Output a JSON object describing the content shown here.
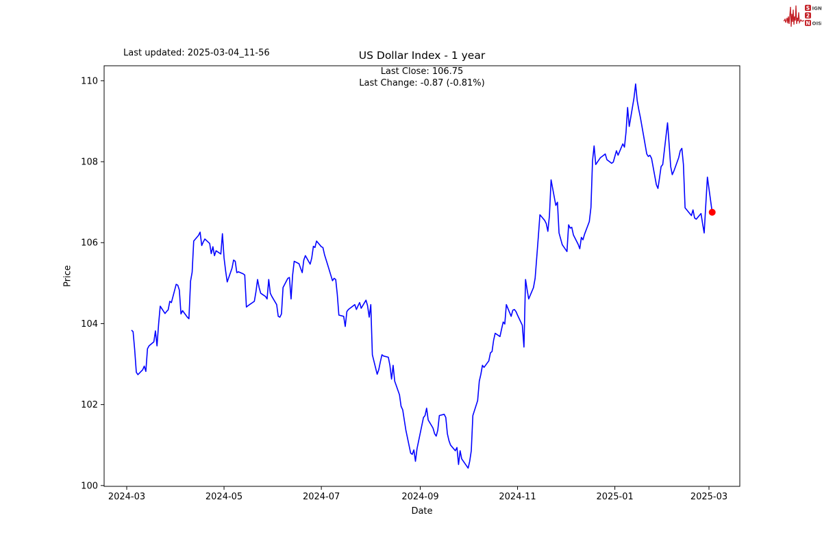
{
  "figure": {
    "updated_label": "Last updated: 2025-03-04_11-56",
    "title": "US Dollar Index - 1 year",
    "subtitle_line1": "Last Close: 106.75",
    "subtitle_line2": "Last Change: -0.87 (-0.81%)"
  },
  "logo": {
    "row1_badge": "S",
    "row1_rest": "IGNAL",
    "row2_badge": "2",
    "row3_badge": "N",
    "row3_rest": "OISE",
    "accent_color": "#c42127",
    "text_color": "#4a4a4a"
  },
  "chart_data": {
    "type": "line",
    "title": "US Dollar Index - 1 year",
    "xlabel": "Date",
    "ylabel": "Price",
    "legend": "none",
    "grid": false,
    "ylim": [
      99.98,
      110.37
    ],
    "xlim": [
      "2024-02-16",
      "2025-03-20"
    ],
    "y_ticks": [
      100,
      102,
      104,
      106,
      108,
      110
    ],
    "x_ticks": [
      {
        "label": "2024-03",
        "date": "2024-03-01"
      },
      {
        "label": "2024-05",
        "date": "2024-05-01"
      },
      {
        "label": "2024-07",
        "date": "2024-07-01"
      },
      {
        "label": "2024-09",
        "date": "2024-09-01"
      },
      {
        "label": "2024-11",
        "date": "2024-11-01"
      },
      {
        "label": "2025-01",
        "date": "2025-01-01"
      },
      {
        "label": "2025-03",
        "date": "2025-03-01"
      }
    ],
    "line_color": "#0000ff",
    "marker_color": "#ff0000",
    "last_point": {
      "date": "2025-03-03",
      "price": 106.75
    },
    "last_close": 106.75,
    "last_change": -0.87,
    "last_change_pct": -0.81,
    "series": [
      {
        "name": "US Dollar Index",
        "points": [
          [
            "2024-03-04",
            103.84
          ],
          [
            "2024-03-05",
            103.8
          ],
          [
            "2024-03-06",
            103.36
          ],
          [
            "2024-03-07",
            102.8
          ],
          [
            "2024-03-08",
            102.74
          ],
          [
            "2024-03-11",
            102.86
          ],
          [
            "2024-03-12",
            102.95
          ],
          [
            "2024-03-13",
            102.82
          ],
          [
            "2024-03-14",
            103.38
          ],
          [
            "2024-03-15",
            103.45
          ],
          [
            "2024-03-18",
            103.55
          ],
          [
            "2024-03-19",
            103.82
          ],
          [
            "2024-03-20",
            103.45
          ],
          [
            "2024-03-21",
            104.0
          ],
          [
            "2024-03-22",
            104.43
          ],
          [
            "2024-03-25",
            104.25
          ],
          [
            "2024-03-26",
            104.3
          ],
          [
            "2024-03-27",
            104.34
          ],
          [
            "2024-03-28",
            104.55
          ],
          [
            "2024-03-29",
            104.52
          ],
          [
            "2024-04-01",
            104.97
          ],
          [
            "2024-04-02",
            104.95
          ],
          [
            "2024-04-03",
            104.83
          ],
          [
            "2024-04-04",
            104.24
          ],
          [
            "2024-04-05",
            104.32
          ],
          [
            "2024-04-08",
            104.16
          ],
          [
            "2024-04-09",
            104.12
          ],
          [
            "2024-04-10",
            105.05
          ],
          [
            "2024-04-11",
            105.27
          ],
          [
            "2024-04-12",
            106.04
          ],
          [
            "2024-04-15",
            106.18
          ],
          [
            "2024-04-16",
            106.26
          ],
          [
            "2024-04-17",
            105.93
          ],
          [
            "2024-04-18",
            106.02
          ],
          [
            "2024-04-19",
            106.09
          ],
          [
            "2024-04-22",
            105.98
          ],
          [
            "2024-04-23",
            105.73
          ],
          [
            "2024-04-24",
            105.9
          ],
          [
            "2024-04-25",
            105.68
          ],
          [
            "2024-04-26",
            105.8
          ],
          [
            "2024-04-29",
            105.72
          ],
          [
            "2024-04-30",
            106.22
          ],
          [
            "2024-05-01",
            105.62
          ],
          [
            "2024-05-02",
            105.3
          ],
          [
            "2024-05-03",
            105.03
          ],
          [
            "2024-05-06",
            105.37
          ],
          [
            "2024-05-07",
            105.57
          ],
          [
            "2024-05-08",
            105.54
          ],
          [
            "2024-05-09",
            105.26
          ],
          [
            "2024-05-10",
            105.28
          ],
          [
            "2024-05-13",
            105.23
          ],
          [
            "2024-05-14",
            105.2
          ],
          [
            "2024-05-15",
            104.41
          ],
          [
            "2024-05-16",
            104.44
          ],
          [
            "2024-05-17",
            104.47
          ],
          [
            "2024-05-20",
            104.55
          ],
          [
            "2024-05-21",
            104.78
          ],
          [
            "2024-05-22",
            105.09
          ],
          [
            "2024-05-23",
            104.89
          ],
          [
            "2024-05-24",
            104.75
          ],
          [
            "2024-05-27",
            104.67
          ],
          [
            "2024-05-28",
            104.61
          ],
          [
            "2024-05-29",
            105.09
          ],
          [
            "2024-05-30",
            104.75
          ],
          [
            "2024-05-31",
            104.67
          ],
          [
            "2024-06-03",
            104.47
          ],
          [
            "2024-06-04",
            104.18
          ],
          [
            "2024-06-05",
            104.16
          ],
          [
            "2024-06-06",
            104.24
          ],
          [
            "2024-06-07",
            104.89
          ],
          [
            "2024-06-10",
            105.12
          ],
          [
            "2024-06-11",
            105.14
          ],
          [
            "2024-06-12",
            104.61
          ],
          [
            "2024-06-13",
            105.2
          ],
          [
            "2024-06-14",
            105.54
          ],
          [
            "2024-06-17",
            105.48
          ],
          [
            "2024-06-18",
            105.37
          ],
          [
            "2024-06-19",
            105.26
          ],
          [
            "2024-06-20",
            105.57
          ],
          [
            "2024-06-21",
            105.68
          ],
          [
            "2024-06-24",
            105.47
          ],
          [
            "2024-06-25",
            105.62
          ],
          [
            "2024-06-26",
            105.91
          ],
          [
            "2024-06-27",
            105.88
          ],
          [
            "2024-06-28",
            106.04
          ],
          [
            "2024-07-01",
            105.9
          ],
          [
            "2024-07-02",
            105.88
          ],
          [
            "2024-07-03",
            105.7
          ],
          [
            "2024-07-05",
            105.45
          ],
          [
            "2024-07-08",
            105.06
          ],
          [
            "2024-07-09",
            105.12
          ],
          [
            "2024-07-10",
            105.09
          ],
          [
            "2024-07-11",
            104.72
          ],
          [
            "2024-07-12",
            104.21
          ],
          [
            "2024-07-15",
            104.18
          ],
          [
            "2024-07-16",
            103.93
          ],
          [
            "2024-07-17",
            104.3
          ],
          [
            "2024-07-18",
            104.35
          ],
          [
            "2024-07-19",
            104.38
          ],
          [
            "2024-07-22",
            104.47
          ],
          [
            "2024-07-23",
            104.35
          ],
          [
            "2024-07-24",
            104.44
          ],
          [
            "2024-07-25",
            104.52
          ],
          [
            "2024-07-26",
            104.38
          ],
          [
            "2024-07-29",
            104.58
          ],
          [
            "2024-07-30",
            104.44
          ],
          [
            "2024-07-31",
            104.16
          ],
          [
            "2024-08-01",
            104.47
          ],
          [
            "2024-08-02",
            103.23
          ],
          [
            "2024-08-05",
            102.75
          ],
          [
            "2024-08-06",
            102.86
          ],
          [
            "2024-08-07",
            103.06
          ],
          [
            "2024-08-08",
            103.23
          ],
          [
            "2024-08-09",
            103.2
          ],
          [
            "2024-08-12",
            103.17
          ],
          [
            "2024-08-13",
            102.97
          ],
          [
            "2024-08-14",
            102.63
          ],
          [
            "2024-08-15",
            102.97
          ],
          [
            "2024-08-16",
            102.58
          ],
          [
            "2024-08-19",
            102.24
          ],
          [
            "2024-08-20",
            101.96
          ],
          [
            "2024-08-21",
            101.87
          ],
          [
            "2024-08-22",
            101.62
          ],
          [
            "2024-08-23",
            101.37
          ],
          [
            "2024-08-26",
            100.8
          ],
          [
            "2024-08-27",
            100.77
          ],
          [
            "2024-08-28",
            100.88
          ],
          [
            "2024-08-29",
            100.6
          ],
          [
            "2024-08-30",
            100.91
          ],
          [
            "2024-09-03",
            101.68
          ],
          [
            "2024-09-04",
            101.73
          ],
          [
            "2024-09-05",
            101.91
          ],
          [
            "2024-09-06",
            101.62
          ],
          [
            "2024-09-09",
            101.42
          ],
          [
            "2024-09-10",
            101.28
          ],
          [
            "2024-09-11",
            101.22
          ],
          [
            "2024-09-12",
            101.37
          ],
          [
            "2024-09-13",
            101.73
          ],
          [
            "2024-09-16",
            101.76
          ],
          [
            "2024-09-17",
            101.68
          ],
          [
            "2024-09-18",
            101.28
          ],
          [
            "2024-09-19",
            101.11
          ],
          [
            "2024-09-20",
            101.0
          ],
          [
            "2024-09-23",
            100.86
          ],
          [
            "2024-09-24",
            100.94
          ],
          [
            "2024-09-25",
            100.52
          ],
          [
            "2024-09-26",
            100.86
          ],
          [
            "2024-09-27",
            100.66
          ],
          [
            "2024-09-30",
            100.49
          ],
          [
            "2024-10-01",
            100.43
          ],
          [
            "2024-10-02",
            100.6
          ],
          [
            "2024-10-03",
            100.86
          ],
          [
            "2024-10-04",
            101.73
          ],
          [
            "2024-10-07",
            102.1
          ],
          [
            "2024-10-08",
            102.58
          ],
          [
            "2024-10-09",
            102.75
          ],
          [
            "2024-10-10",
            102.97
          ],
          [
            "2024-10-11",
            102.92
          ],
          [
            "2024-10-14",
            103.08
          ],
          [
            "2024-10-15",
            103.28
          ],
          [
            "2024-10-16",
            103.31
          ],
          [
            "2024-10-17",
            103.59
          ],
          [
            "2024-10-18",
            103.76
          ],
          [
            "2024-10-21",
            103.68
          ],
          [
            "2024-10-22",
            103.87
          ],
          [
            "2024-10-23",
            104.04
          ],
          [
            "2024-10-24",
            103.99
          ],
          [
            "2024-10-25",
            104.47
          ],
          [
            "2024-10-28",
            104.18
          ],
          [
            "2024-10-29",
            104.33
          ],
          [
            "2024-10-30",
            104.35
          ],
          [
            "2024-10-31",
            104.3
          ],
          [
            "2024-11-01",
            104.21
          ],
          [
            "2024-11-04",
            103.96
          ],
          [
            "2024-11-05",
            103.42
          ],
          [
            "2024-11-06",
            105.09
          ],
          [
            "2024-11-07",
            104.84
          ],
          [
            "2024-11-08",
            104.61
          ],
          [
            "2024-11-11",
            104.89
          ],
          [
            "2024-11-12",
            105.12
          ],
          [
            "2024-11-13",
            105.62
          ],
          [
            "2024-11-14",
            106.13
          ],
          [
            "2024-11-15",
            106.69
          ],
          [
            "2024-11-18",
            106.55
          ],
          [
            "2024-11-19",
            106.47
          ],
          [
            "2024-11-20",
            106.28
          ],
          [
            "2024-11-21",
            106.67
          ],
          [
            "2024-11-22",
            107.55
          ],
          [
            "2024-11-25",
            106.92
          ],
          [
            "2024-11-26",
            107.0
          ],
          [
            "2024-11-27",
            106.24
          ],
          [
            "2024-11-29",
            105.95
          ],
          [
            "2024-12-02",
            105.78
          ],
          [
            "2024-12-03",
            106.44
          ],
          [
            "2024-12-04",
            106.36
          ],
          [
            "2024-12-05",
            106.38
          ],
          [
            "2024-12-06",
            106.19
          ],
          [
            "2024-12-09",
            105.96
          ],
          [
            "2024-12-10",
            105.85
          ],
          [
            "2024-12-11",
            106.13
          ],
          [
            "2024-12-12",
            106.07
          ],
          [
            "2024-12-13",
            106.21
          ],
          [
            "2024-12-16",
            106.52
          ],
          [
            "2024-12-17",
            106.87
          ],
          [
            "2024-12-18",
            108.02
          ],
          [
            "2024-12-19",
            108.39
          ],
          [
            "2024-12-20",
            107.93
          ],
          [
            "2024-12-23",
            108.1
          ],
          [
            "2024-12-24",
            108.13
          ],
          [
            "2024-12-26",
            108.19
          ],
          [
            "2024-12-27",
            108.05
          ],
          [
            "2024-12-30",
            107.96
          ],
          [
            "2024-12-31",
            107.99
          ],
          [
            "2025-01-02",
            108.27
          ],
          [
            "2025-01-03",
            108.16
          ],
          [
            "2025-01-06",
            108.44
          ],
          [
            "2025-01-07",
            108.36
          ],
          [
            "2025-01-08",
            108.73
          ],
          [
            "2025-01-09",
            109.34
          ],
          [
            "2025-01-10",
            108.87
          ],
          [
            "2025-01-13",
            109.57
          ],
          [
            "2025-01-14",
            109.92
          ],
          [
            "2025-01-15",
            109.51
          ],
          [
            "2025-01-16",
            109.29
          ],
          [
            "2025-01-17",
            109.09
          ],
          [
            "2025-01-21",
            108.19
          ],
          [
            "2025-01-22",
            108.13
          ],
          [
            "2025-01-23",
            108.16
          ],
          [
            "2025-01-24",
            108.08
          ],
          [
            "2025-01-27",
            107.43
          ],
          [
            "2025-01-28",
            107.34
          ],
          [
            "2025-01-29",
            107.6
          ],
          [
            "2025-01-30",
            107.88
          ],
          [
            "2025-01-31",
            107.93
          ],
          [
            "2025-02-03",
            108.96
          ],
          [
            "2025-02-04",
            108.44
          ],
          [
            "2025-02-05",
            107.88
          ],
          [
            "2025-02-06",
            107.68
          ],
          [
            "2025-02-07",
            107.77
          ],
          [
            "2025-02-10",
            108.1
          ],
          [
            "2025-02-11",
            108.27
          ],
          [
            "2025-02-12",
            108.33
          ],
          [
            "2025-02-13",
            107.93
          ],
          [
            "2025-02-14",
            106.86
          ],
          [
            "2025-02-18",
            106.67
          ],
          [
            "2025-02-19",
            106.81
          ],
          [
            "2025-02-20",
            106.61
          ],
          [
            "2025-02-21",
            106.58
          ],
          [
            "2025-02-24",
            106.72
          ],
          [
            "2025-02-25",
            106.47
          ],
          [
            "2025-02-26",
            106.24
          ],
          [
            "2025-02-27",
            106.92
          ],
          [
            "2025-02-28",
            107.62
          ],
          [
            "2025-03-03",
            106.75
          ]
        ]
      }
    ]
  }
}
